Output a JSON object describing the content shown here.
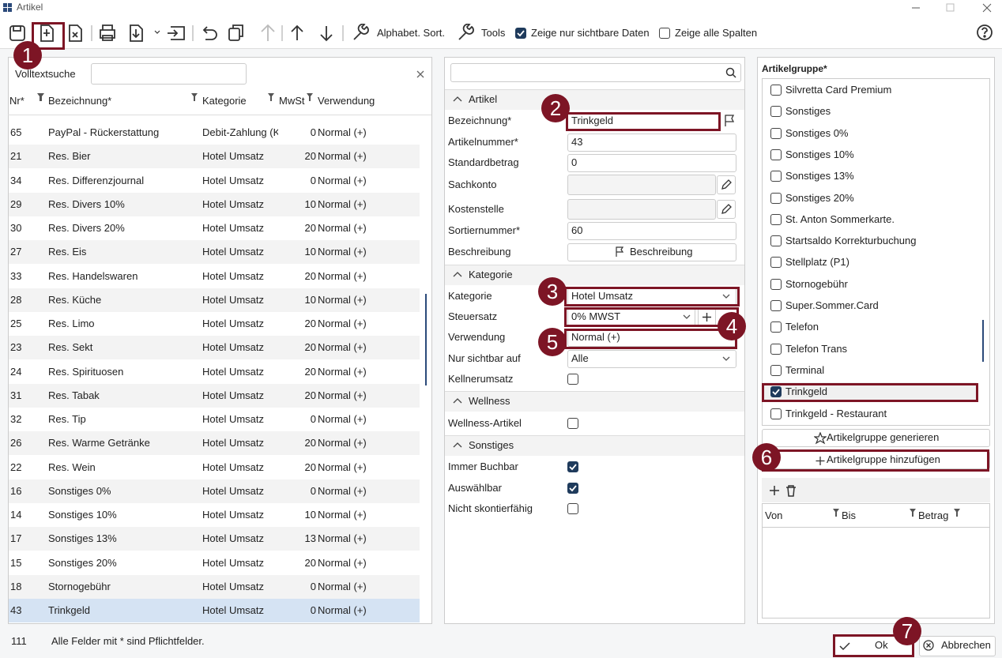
{
  "window": {
    "title": "Artikel"
  },
  "toolbar": {
    "sort": "Alphabet. Sort.",
    "tools": "Tools",
    "options": [
      {
        "label": "Zeige nur sichtbare Daten",
        "checked": true
      },
      {
        "label": "Zeige alle Spalten",
        "checked": false
      }
    ]
  },
  "list": {
    "search_label": "Volltextsuche",
    "columns": [
      "Nr*",
      "Bezeichnung*",
      "Kategorie",
      "MwSt",
      "Verwendung"
    ],
    "rows": [
      [
        65,
        "PayPal - Rückerstattung",
        "Debit-Zahlung (K",
        0,
        "Normal (+)"
      ],
      [
        21,
        "Res. Bier",
        "Hotel Umsatz",
        20,
        "Normal (+)"
      ],
      [
        34,
        "Res. Differenzjournal",
        "Hotel Umsatz",
        0,
        "Normal (+)"
      ],
      [
        29,
        "Res. Divers 10%",
        "Hotel Umsatz",
        10,
        "Normal (+)"
      ],
      [
        30,
        "Res. Divers 20%",
        "Hotel Umsatz",
        20,
        "Normal (+)"
      ],
      [
        27,
        "Res. Eis",
        "Hotel Umsatz",
        10,
        "Normal (+)"
      ],
      [
        33,
        "Res. Handelswaren",
        "Hotel Umsatz",
        20,
        "Normal (+)"
      ],
      [
        28,
        "Res. Küche",
        "Hotel Umsatz",
        10,
        "Normal (+)"
      ],
      [
        25,
        "Res. Limo",
        "Hotel Umsatz",
        20,
        "Normal (+)"
      ],
      [
        23,
        "Res. Sekt",
        "Hotel Umsatz",
        20,
        "Normal (+)"
      ],
      [
        24,
        "Res. Spirituosen",
        "Hotel Umsatz",
        20,
        "Normal (+)"
      ],
      [
        31,
        "Res. Tabak",
        "Hotel Umsatz",
        20,
        "Normal (+)"
      ],
      [
        32,
        "Res. Tip",
        "Hotel Umsatz",
        0,
        "Normal (+)"
      ],
      [
        26,
        "Res. Warme Getränke",
        "Hotel Umsatz",
        20,
        "Normal (+)"
      ],
      [
        22,
        "Res. Wein",
        "Hotel Umsatz",
        20,
        "Normal (+)"
      ],
      [
        16,
        "Sonstiges 0%",
        "Hotel Umsatz",
        0,
        "Normal (+)"
      ],
      [
        14,
        "Sonstiges 10%",
        "Hotel Umsatz",
        10,
        "Normal (+)"
      ],
      [
        17,
        "Sonstiges 13%",
        "Hotel Umsatz",
        13,
        "Normal (+)"
      ],
      [
        15,
        "Sonstiges 20%",
        "Hotel Umsatz",
        20,
        "Normal (+)"
      ],
      [
        18,
        "Stornogebühr",
        "Hotel Umsatz",
        0,
        "Normal (+)"
      ],
      [
        43,
        "Trinkgeld",
        "Hotel Umsatz",
        0,
        "Normal (+)"
      ]
    ],
    "selected": 20
  },
  "form": {
    "sections": [
      {
        "title": "Artikel",
        "fields": [
          {
            "label": "Bezeichnung*",
            "value": "Trinkgeld",
            "kind": "text-flag"
          },
          {
            "label": "Artikelnummer*",
            "value": "43",
            "kind": "text"
          },
          {
            "label": "Standardbetrag",
            "value": "0",
            "kind": "text"
          },
          {
            "label": "Sachkonto",
            "kind": "edit"
          },
          {
            "label": "Kostenstelle",
            "kind": "edit"
          },
          {
            "label": "Sortiernummer*",
            "value": "60",
            "kind": "text"
          },
          {
            "label": "Beschreibung",
            "value": "Beschreibung",
            "kind": "button"
          }
        ]
      },
      {
        "title": "Kategorie",
        "fields": [
          {
            "label": "Kategorie",
            "value": "Hotel Umsatz",
            "kind": "select"
          },
          {
            "label": "Steuersatz",
            "value": "0% MWST",
            "kind": "select-plus"
          },
          {
            "label": "Verwendung",
            "value": "Normal (+)",
            "kind": "text"
          },
          {
            "label": "Nur sichtbar auf",
            "value": "Alle",
            "kind": "select"
          },
          {
            "label": "Kellnerumsatz",
            "kind": "checkbox",
            "checked": false
          }
        ]
      },
      {
        "title": "Wellness",
        "fields": [
          {
            "label": "Wellness-Artikel",
            "kind": "checkbox",
            "checked": false
          }
        ]
      },
      {
        "title": "Sonstiges",
        "fields": [
          {
            "label": "Immer Buchbar",
            "kind": "checkbox",
            "checked": true
          },
          {
            "label": "Auswählbar",
            "kind": "checkbox",
            "checked": true
          },
          {
            "label": "Nicht skontierfähig",
            "kind": "checkbox",
            "checked": false
          }
        ]
      }
    ]
  },
  "groups": {
    "title": "Artikelgruppe*",
    "items": [
      {
        "label": "Silvretta Card Premium",
        "checked": false
      },
      {
        "label": "Sonstiges",
        "checked": false
      },
      {
        "label": "Sonstiges 0%",
        "checked": false
      },
      {
        "label": "Sonstiges 10%",
        "checked": false
      },
      {
        "label": "Sonstiges 13%",
        "checked": false
      },
      {
        "label": "Sonstiges 20%",
        "checked": false
      },
      {
        "label": "St. Anton Sommerkarte.",
        "checked": false
      },
      {
        "label": "Startsaldo Korrekturbuchung",
        "checked": false
      },
      {
        "label": "Stellplatz (P1)",
        "checked": false
      },
      {
        "label": "Stornogebühr",
        "checked": false
      },
      {
        "label": "Super.Sommer.Card",
        "checked": false
      },
      {
        "label": "Telefon",
        "checked": false
      },
      {
        "label": "Telefon Trans",
        "checked": false
      },
      {
        "label": "Terminal",
        "checked": false
      },
      {
        "label": "Trinkgeld",
        "checked": true
      },
      {
        "label": "Trinkgeld - Restaurant",
        "checked": false
      }
    ],
    "buttons": [
      "Artikelgruppe generieren",
      "Artikelgruppe hinzufügen"
    ],
    "columns": [
      "Von",
      "Bis",
      "Betrag"
    ]
  },
  "footer": {
    "count": "111",
    "note": "Alle Felder mit * sind Pflichtfelder.",
    "ok": "Ok",
    "cancel": "Abbrechen"
  },
  "annotations": [
    "1",
    "2",
    "3",
    "4",
    "5",
    "6",
    "7"
  ]
}
